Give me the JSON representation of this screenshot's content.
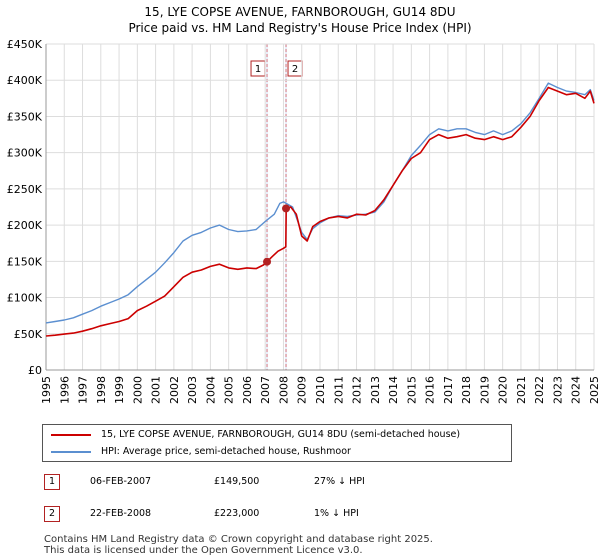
{
  "title_line1": "15, LYE COPSE AVENUE, FARNBOROUGH, GU14 8DU",
  "title_line2": "Price paid vs. HM Land Registry's House Price Index (HPI)",
  "colors": {
    "price": "#cc0000",
    "hpi": "#5b8fd0",
    "band": "#e8eef9",
    "marker": "#b22222"
  },
  "legend": {
    "price_label": "15, LYE COPSE AVENUE, FARNBOROUGH, GU14 8DU (semi-detached house)",
    "hpi_label": "HPI: Average price, semi-detached house, Rushmoor"
  },
  "transactions": [
    {
      "num": "1",
      "date": "06-FEB-2007",
      "price": "£149,500",
      "hpi": "27% ↓ HPI"
    },
    {
      "num": "2",
      "date": "22-FEB-2008",
      "price": "£223,000",
      "hpi": "1% ↓ HPI"
    }
  ],
  "footer": {
    "line1": "Contains HM Land Registry data © Crown copyright and database right 2025.",
    "line2": "This data is licensed under the Open Government Licence v3.0."
  },
  "chart_data": {
    "type": "line",
    "title": "15, LYE COPSE AVENUE, FARNBOROUGH, GU14 8DU",
    "subtitle": "Price paid vs. HM Land Registry's House Price Index (HPI)",
    "xlabel": "",
    "ylabel": "",
    "xlim": [
      1995,
      2025
    ],
    "ylim": [
      0,
      450000
    ],
    "x_ticks": [
      1995,
      1996,
      1997,
      1998,
      1999,
      2000,
      2001,
      2002,
      2003,
      2004,
      2005,
      2006,
      2007,
      2008,
      2009,
      2010,
      2011,
      2012,
      2013,
      2014,
      2015,
      2016,
      2017,
      2018,
      2019,
      2020,
      2021,
      2022,
      2023,
      2024,
      2025
    ],
    "x_tick_labels": [
      "1995",
      "1996",
      "1997",
      "1998",
      "1999",
      "2000",
      "2001",
      "2002",
      "2003",
      "2004",
      "2005",
      "2006",
      "2007",
      "2008",
      "2009",
      "2010",
      "2011",
      "2012",
      "2013",
      "2014",
      "2015",
      "2016",
      "2017",
      "2018",
      "2019",
      "2020",
      "2021",
      "2022",
      "2023",
      "2024",
      "2025"
    ],
    "y_ticks": [
      0,
      50000,
      100000,
      150000,
      200000,
      250000,
      300000,
      350000,
      400000,
      450000
    ],
    "y_tick_labels": [
      "£0",
      "£50K",
      "£100K",
      "£150K",
      "£200K",
      "£250K",
      "£300K",
      "£350K",
      "£400K",
      "£450K"
    ],
    "grid": true,
    "sale_bands": [
      {
        "label": "1",
        "x": 2007.1
      },
      {
        "label": "2",
        "x": 2008.14
      }
    ],
    "sale_points": [
      {
        "x": 2007.1,
        "y": 149500
      },
      {
        "x": 2008.14,
        "y": 223000
      }
    ],
    "series": [
      {
        "name": "15, LYE COPSE AVENUE, FARNBOROUGH, GU14 8DU (semi-detached house)",
        "x": [
          1995.0,
          1995.5,
          1996.0,
          1996.5,
          1997.0,
          1997.5,
          1998.0,
          1998.5,
          1999.0,
          1999.5,
          2000.0,
          2000.5,
          2001.0,
          2001.5,
          2002.0,
          2002.5,
          2003.0,
          2003.5,
          2004.0,
          2004.5,
          2005.0,
          2005.5,
          2006.0,
          2006.5,
          2006.9,
          2007.1,
          2007.4,
          2007.7,
          2008.0,
          2008.13,
          2008.15,
          2008.4,
          2008.7,
          2009.0,
          2009.3,
          2009.6,
          2010.0,
          2010.5,
          2011.0,
          2011.5,
          2012.0,
          2012.5,
          2013.0,
          2013.5,
          2014.0,
          2014.5,
          2015.0,
          2015.5,
          2016.0,
          2016.5,
          2017.0,
          2017.5,
          2018.0,
          2018.5,
          2019.0,
          2019.5,
          2020.0,
          2020.5,
          2021.0,
          2021.5,
          2022.0,
          2022.5,
          2023.0,
          2023.5,
          2024.0,
          2024.5,
          2024.8,
          2025.0
        ],
        "values": [
          47000,
          48000,
          49500,
          51000,
          53500,
          57000,
          61000,
          64000,
          67000,
          71000,
          82000,
          88000,
          95000,
          102000,
          115000,
          128000,
          135000,
          138000,
          143000,
          146000,
          141000,
          139000,
          141000,
          140000,
          145000,
          149500,
          157000,
          164000,
          168000,
          170000,
          223000,
          225000,
          215000,
          185000,
          178000,
          198000,
          205000,
          210000,
          212000,
          210000,
          215000,
          214000,
          220000,
          235000,
          255000,
          275000,
          292000,
          300000,
          318000,
          325000,
          320000,
          322000,
          325000,
          320000,
          318000,
          322000,
          318000,
          322000,
          335000,
          350000,
          372000,
          390000,
          385000,
          380000,
          382000,
          375000,
          385000,
          368000
        ]
      },
      {
        "name": "HPI: Average price, semi-detached house, Rushmoor",
        "x": [
          1995.0,
          1995.5,
          1996.0,
          1996.5,
          1997.0,
          1997.5,
          1998.0,
          1998.5,
          1999.0,
          1999.5,
          2000.0,
          2000.5,
          2001.0,
          2001.5,
          2002.0,
          2002.5,
          2003.0,
          2003.5,
          2004.0,
          2004.5,
          2005.0,
          2005.5,
          2006.0,
          2006.5,
          2007.0,
          2007.5,
          2007.8,
          2008.0,
          2008.5,
          2009.0,
          2009.3,
          2009.6,
          2010.0,
          2010.5,
          2011.0,
          2011.5,
          2012.0,
          2012.5,
          2013.0,
          2013.5,
          2014.0,
          2014.5,
          2015.0,
          2015.5,
          2016.0,
          2016.5,
          2017.0,
          2017.5,
          2018.0,
          2018.5,
          2019.0,
          2019.5,
          2020.0,
          2020.5,
          2021.0,
          2021.5,
          2022.0,
          2022.5,
          2023.0,
          2023.5,
          2024.0,
          2024.5,
          2024.8,
          2025.0
        ],
        "values": [
          65000,
          67000,
          69000,
          72000,
          77000,
          82000,
          88000,
          93000,
          98000,
          104000,
          115000,
          125000,
          135000,
          148000,
          162000,
          178000,
          186000,
          190000,
          196000,
          200000,
          194000,
          191000,
          192000,
          194000,
          205000,
          215000,
          230000,
          232000,
          225000,
          190000,
          180000,
          195000,
          203000,
          210000,
          213000,
          212000,
          214000,
          215000,
          218000,
          232000,
          255000,
          275000,
          296000,
          310000,
          325000,
          333000,
          330000,
          333000,
          333000,
          328000,
          325000,
          330000,
          325000,
          330000,
          340000,
          355000,
          375000,
          396000,
          390000,
          385000,
          383000,
          380000,
          387000,
          372000
        ]
      }
    ]
  }
}
